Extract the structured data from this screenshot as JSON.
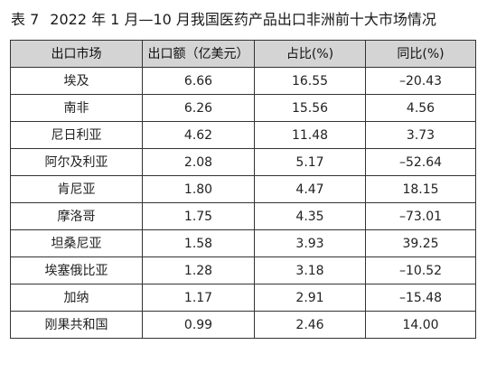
{
  "caption": {
    "number": "表 7",
    "title": "2022 年 1 月—10 月我国医药产品出口非洲前十大市场情况"
  },
  "table": {
    "columns": [
      "出口市场",
      "出口额（亿美元）",
      "占比(%)",
      "同比(%)"
    ],
    "rows": [
      [
        "埃及",
        "6.66",
        "16.55",
        "–20.43"
      ],
      [
        "南非",
        "6.26",
        "15.56",
        "4.56"
      ],
      [
        "尼日利亚",
        "4.62",
        "11.48",
        "3.73"
      ],
      [
        "阿尔及利亚",
        "2.08",
        "5.17",
        "–52.64"
      ],
      [
        "肯尼亚",
        "1.80",
        "4.47",
        "18.15"
      ],
      [
        "摩洛哥",
        "1.75",
        "4.35",
        "–73.01"
      ],
      [
        "坦桑尼亚",
        "1.58",
        "3.93",
        "39.25"
      ],
      [
        "埃塞俄比亚",
        "1.28",
        "3.18",
        "–10.52"
      ],
      [
        "加纳",
        "1.17",
        "2.91",
        "–15.48"
      ],
      [
        "刚果共和国",
        "0.99",
        "2.46",
        "14.00"
      ]
    ]
  }
}
